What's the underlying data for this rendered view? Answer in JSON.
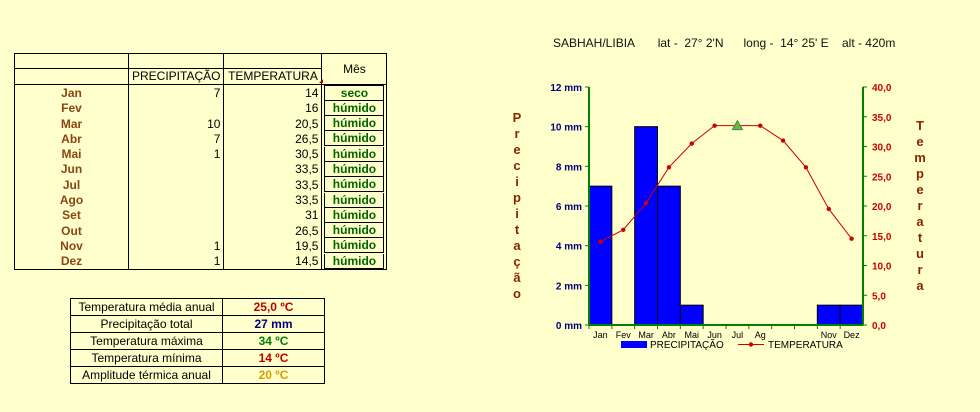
{
  "table": {
    "header_precip": "PRECIPITAÇÃO",
    "header_temp": "TEMPERATURA",
    "header_status": "Mês",
    "rows": [
      {
        "month": "Jan",
        "precip": "7",
        "temp": "14",
        "status": "seco",
        "status_color": "#006400"
      },
      {
        "month": "Fev",
        "precip": "",
        "temp": "16",
        "status": "húmido",
        "status_color": "#006400"
      },
      {
        "month": "Mar",
        "precip": "10",
        "temp": "20,5",
        "status": "húmido",
        "status_color": "#006400"
      },
      {
        "month": "Abr",
        "precip": "7",
        "temp": "26,5",
        "status": "húmido",
        "status_color": "#006400"
      },
      {
        "month": "Mai",
        "precip": "1",
        "temp": "30,5",
        "status": "húmido",
        "status_color": "#006400"
      },
      {
        "month": "Jun",
        "precip": "",
        "temp": "33,5",
        "status": "húmido",
        "status_color": "#006400"
      },
      {
        "month": "Jul",
        "precip": "",
        "temp": "33,5",
        "status": "húmido",
        "status_color": "#006400"
      },
      {
        "month": "Ago",
        "precip": "",
        "temp": "33,5",
        "status": "húmido",
        "status_color": "#006400"
      },
      {
        "month": "Set",
        "precip": "",
        "temp": "31",
        "status": "húmido",
        "status_color": "#006400"
      },
      {
        "month": "Out",
        "precip": "",
        "temp": "26,5",
        "status": "húmido",
        "status_color": "#006400"
      },
      {
        "month": "Nov",
        "precip": "1",
        "temp": "19,5",
        "status": "húmido",
        "status_color": "#006400"
      },
      {
        "month": "Dez",
        "precip": "1",
        "temp": "14,5",
        "status": "húmido",
        "status_color": "#006400"
      }
    ]
  },
  "summary": [
    {
      "label": "Temperatura média anual",
      "value": "25,0 ºC",
      "color": "#c00000"
    },
    {
      "label": "Precipitação total",
      "value": "27 mm",
      "color": "#000080"
    },
    {
      "label": "Temperatura máxima",
      "value": "34 ºC",
      "color": "#008000"
    },
    {
      "label": "Temperatura mínima",
      "value": "14 ºC",
      "color": "#c00000"
    },
    {
      "label": "Amplitude térmica anual",
      "value": "20 ºC",
      "color": "#d4a000"
    }
  ],
  "chart_data": {
    "type": "bar",
    "title": "SABHAH/LIBIA       lat -  27° 2'N      long -  14° 25' E    alt - 420m",
    "categories": [
      "Jan",
      "Fev",
      "Mar",
      "Abr",
      "Mai",
      "Jun",
      "Jul",
      "Ag",
      "",
      "",
      "Nov",
      "Dez"
    ],
    "series": [
      {
        "name": "PRECIPITAÇÃO",
        "type": "bar",
        "axis": "left",
        "color": "#0000ff",
        "values": [
          7,
          0,
          10,
          7,
          1,
          0,
          0,
          0,
          0,
          0,
          1,
          1
        ]
      },
      {
        "name": "TEMPERATURA",
        "type": "line",
        "axis": "right",
        "color": "#cc0000",
        "values": [
          14,
          16,
          20.5,
          26.5,
          30.5,
          33.5,
          33.5,
          33.5,
          31,
          26.5,
          19.5,
          14.5
        ]
      }
    ],
    "left_axis": {
      "label": "Precipitação",
      "ylim": [
        0,
        12
      ],
      "ticks": [
        "0 mm",
        "2 mm",
        "4 mm",
        "6 mm",
        "8 mm",
        "10 mm",
        "12 mm"
      ],
      "values": [
        0,
        2,
        4,
        6,
        8,
        10,
        12
      ],
      "color": "#000080",
      "label_color": "#8b2500"
    },
    "right_axis": {
      "label": "Temperatura",
      "ylim": [
        0,
        40
      ],
      "ticks": [
        "0,0",
        "5,0",
        "10,0",
        "15,0",
        "20,0",
        "25,0",
        "30,0",
        "35,0",
        "40,0"
      ],
      "values": [
        0,
        5,
        10,
        15,
        20,
        25,
        30,
        35,
        40
      ],
      "color": "#cc0000",
      "label_color": "#8b2500"
    },
    "axis_color": "#008000",
    "marker_triangle_month_index": 6,
    "legend_position": "bottom"
  }
}
